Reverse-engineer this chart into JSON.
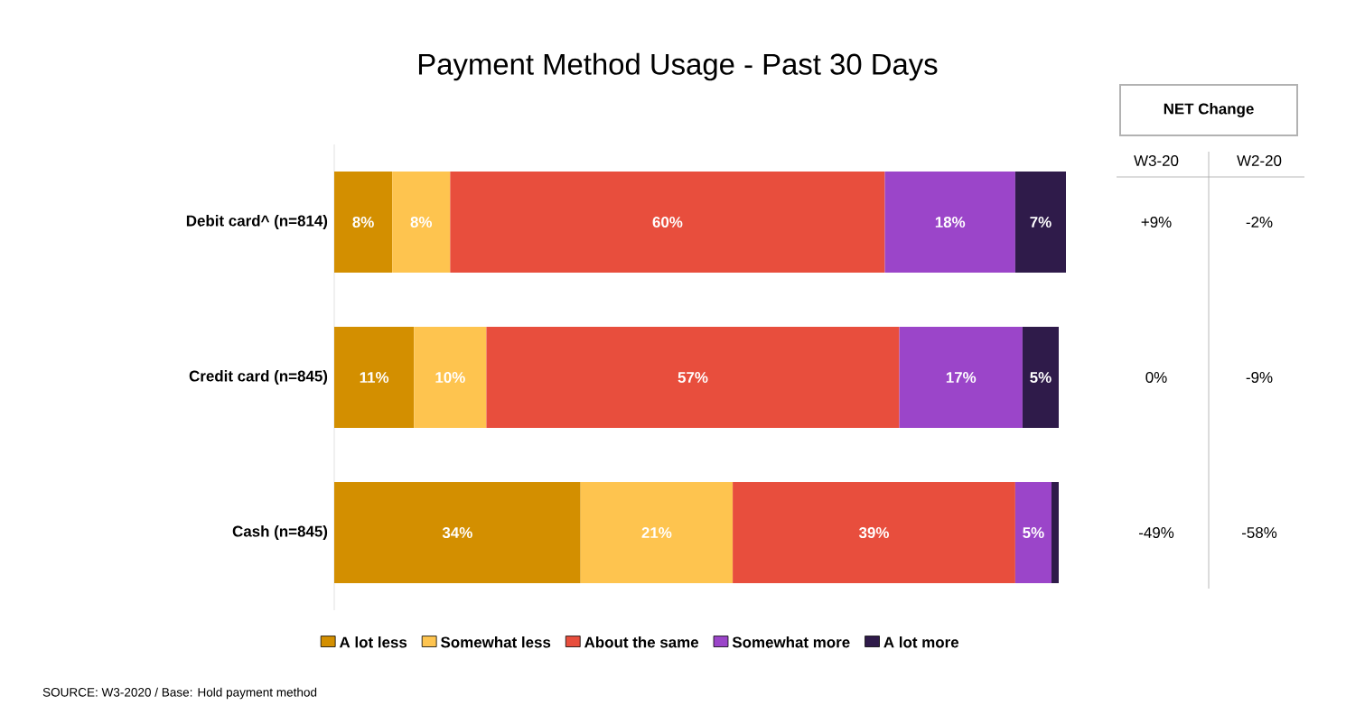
{
  "chart_data": {
    "type": "bar",
    "orientation": "horizontal",
    "stacked": true,
    "title": "Payment Method Usage - Past 30 Days",
    "categories": [
      "Debit card^ (n=814)",
      "Credit card (n=845)",
      "Cash (n=845)"
    ],
    "series": [
      {
        "name": "A lot less",
        "color": "#d38f00",
        "values": [
          8,
          11,
          34
        ],
        "value_labels": [
          "8%",
          "11%",
          "34%"
        ]
      },
      {
        "name": "Somewhat less",
        "color": "#fec44f",
        "values": [
          8,
          10,
          21
        ],
        "value_labels": [
          "8%",
          "10%",
          "21%"
        ]
      },
      {
        "name": "About the same",
        "color": "#e84e3d",
        "values": [
          60,
          57,
          39
        ],
        "value_labels": [
          "60%",
          "57%",
          "39%"
        ]
      },
      {
        "name": "Somewhat more",
        "color": "#9b45c9",
        "values": [
          18,
          17,
          5
        ],
        "value_labels": [
          "18%",
          "17%",
          "5%"
        ]
      },
      {
        "name": "A lot more",
        "color": "#2f1b4a",
        "values": [
          7,
          5,
          1
        ],
        "value_labels": [
          "7%",
          "5%",
          null
        ]
      }
    ],
    "legend": "bottom",
    "tick_labels": "y",
    "annotations": [
      "NET Change",
      "W3-20",
      "W2-20",
      "+9%",
      "-2%",
      "0%",
      "-9%",
      "-49%",
      "-58%",
      "SOURCE: W3-2020 / Base: Hold payment method"
    ]
  }
}
